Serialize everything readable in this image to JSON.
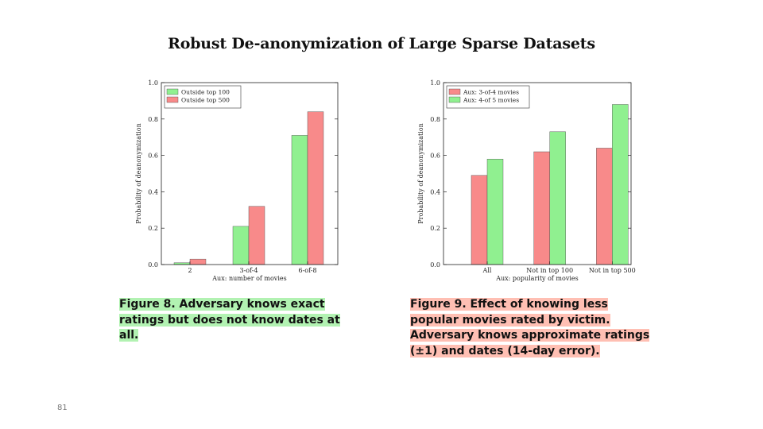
{
  "paper_title": "Robust De-anonymization of Large Sparse Datasets",
  "slide_number": "81",
  "chart_data": [
    {
      "type": "bar",
      "categories": [
        "2",
        "3-of-4",
        "6-of-8"
      ],
      "series": [
        {
          "name": "Outside top 100",
          "color": "#90f090",
          "values": [
            0.01,
            0.21,
            0.71
          ]
        },
        {
          "name": "Outside top 500",
          "color": "#f88a8a",
          "values": [
            0.03,
            0.32,
            0.84
          ]
        }
      ],
      "xlabel": "Aux: number of movies",
      "ylabel": "Probability of deanonymization",
      "ylim": [
        0,
        1.0
      ],
      "yticks": [
        "0.0",
        "0.2",
        "0.4",
        "0.6",
        "0.8",
        "1.0"
      ],
      "legend": "top-left",
      "grid": false
    },
    {
      "type": "bar",
      "categories": [
        "All",
        "Not in top 100",
        "Not in top 500"
      ],
      "series": [
        {
          "name": "Aux: 3-of-4 movies",
          "color": "#f88a8a",
          "values": [
            0.49,
            0.62,
            0.64
          ]
        },
        {
          "name": "Aux: 4-of 5 movies",
          "color": "#90f090",
          "values": [
            0.58,
            0.73,
            0.88
          ]
        }
      ],
      "xlabel": "Aux: popularity of movies",
      "ylabel": "Probability of deanonymization",
      "ylim": [
        0,
        1.0
      ],
      "yticks": [
        "0.0",
        "0.2",
        "0.4",
        "0.6",
        "0.8",
        "1.0"
      ],
      "legend": "top-left",
      "grid": false
    }
  ],
  "captions": {
    "fig8": "Figure 8. Adversary knows exact ratings but does not know dates at all.",
    "fig9": "Figure 9. Effect of knowing less popular movies rated by victim. Adversary knows approximate ratings (±1) and dates (14-day error)."
  },
  "colors": {
    "fig8_highlight": "#b2f2b2",
    "fig9_highlight": "#ffbfb3"
  }
}
